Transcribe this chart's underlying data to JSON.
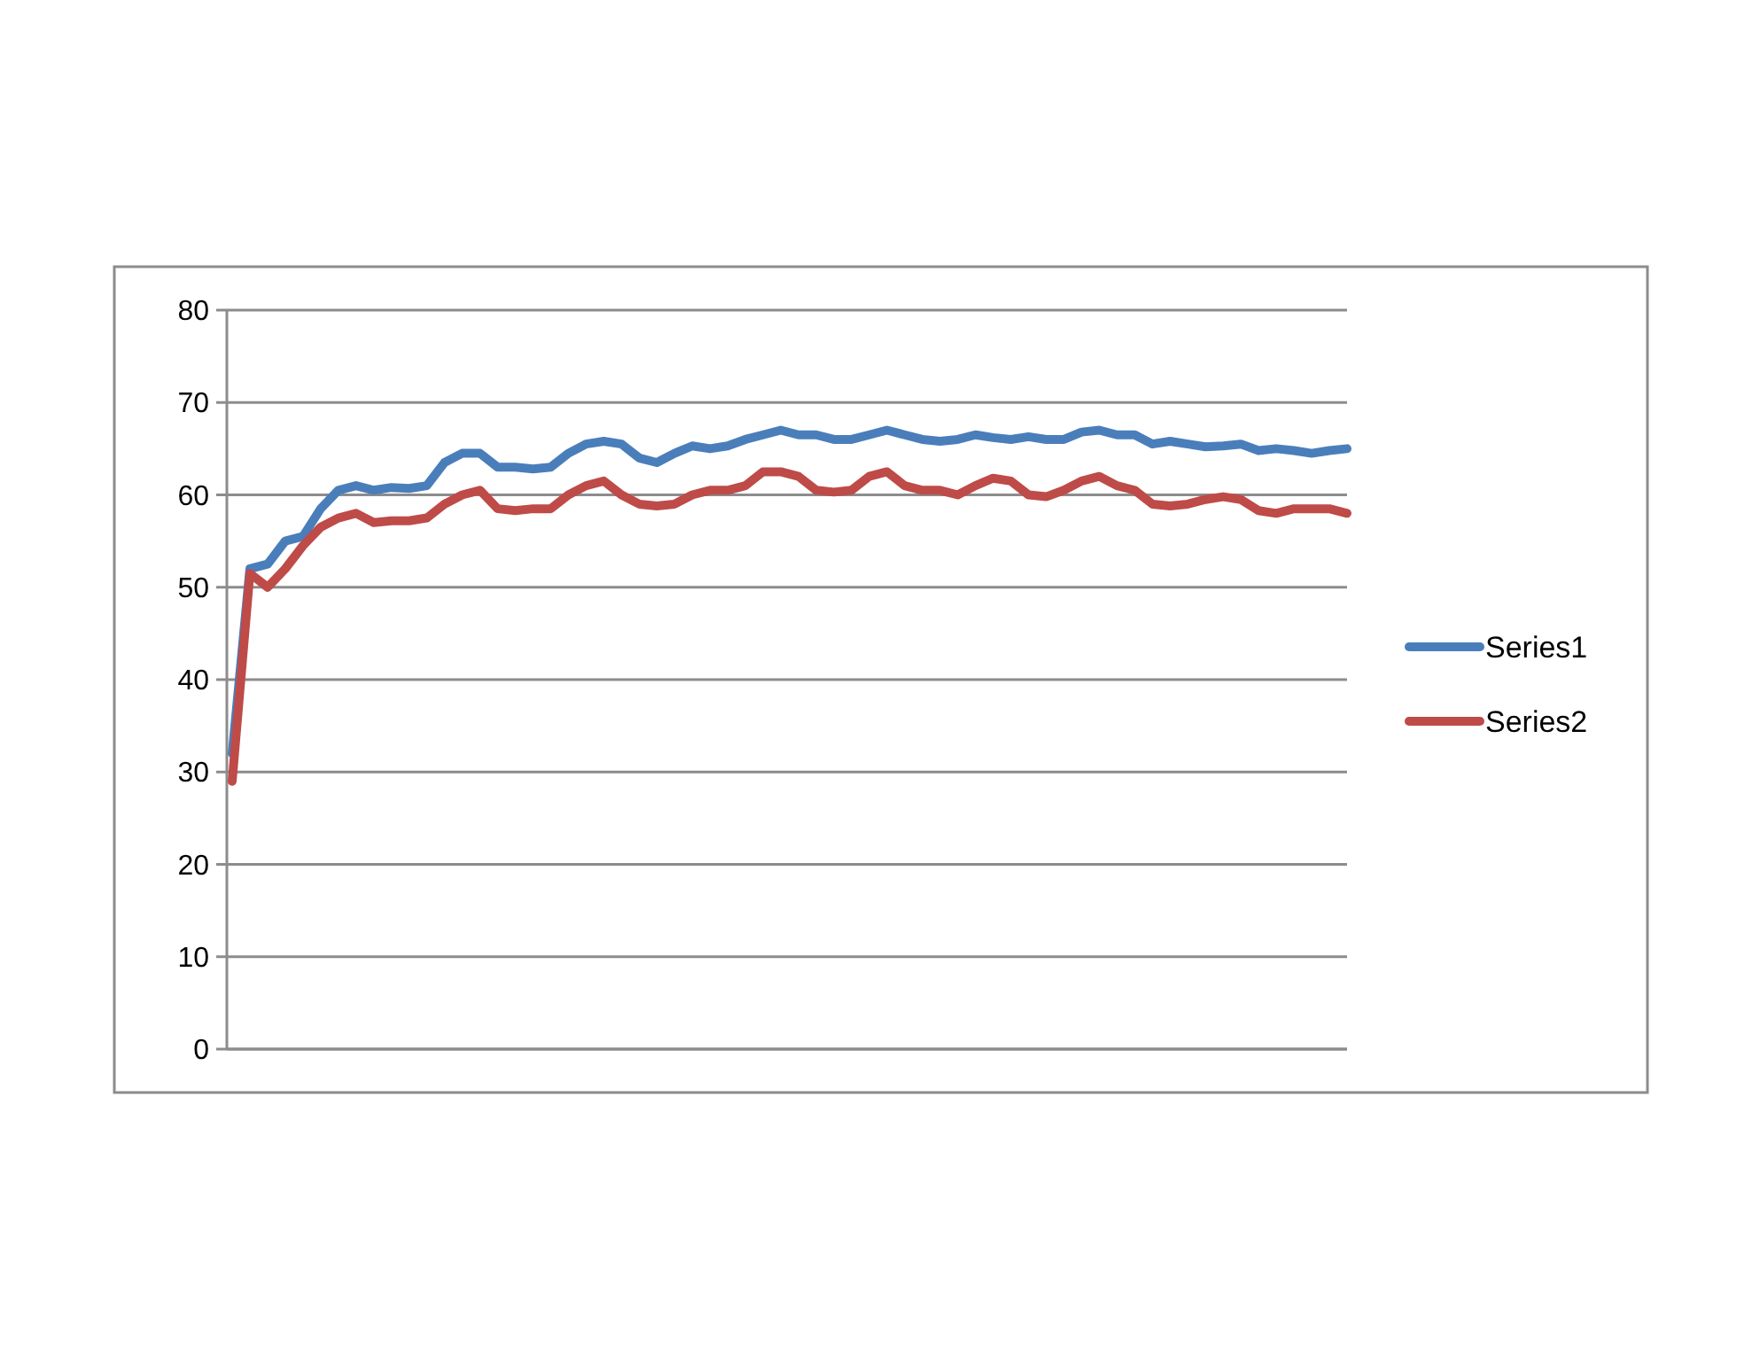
{
  "chart_data": {
    "type": "line",
    "categories": [
      null,
      null,
      null,
      null,
      null,
      null,
      null,
      null,
      null,
      null,
      null,
      null,
      null,
      null,
      null,
      null,
      null,
      null,
      null,
      null,
      null,
      null,
      null,
      null,
      null,
      null,
      null,
      null,
      null,
      null,
      null,
      null,
      null,
      null,
      null,
      null,
      null,
      null,
      null,
      null,
      null,
      null,
      null,
      null,
      null,
      null,
      null,
      null,
      null,
      null,
      null,
      null,
      null,
      null,
      null,
      null,
      null,
      null,
      null,
      null,
      null,
      null,
      null,
      null
    ],
    "series": [
      {
        "name": "Series1",
        "color": "#4a7ebb",
        "values": [
          32,
          52,
          52.5,
          55,
          55.5,
          58.5,
          60.5,
          61,
          60.5,
          60.8,
          60.7,
          61,
          63.5,
          64.5,
          64.5,
          63,
          63,
          62.8,
          63,
          64.5,
          65.5,
          65.8,
          65.5,
          64,
          63.5,
          64.5,
          65.3,
          65,
          65.3,
          66,
          66.5,
          67,
          66.5,
          66.5,
          66,
          66,
          66.5,
          67,
          66.5,
          66,
          65.8,
          66,
          66.5,
          66.2,
          66,
          66.3,
          66,
          66,
          66.8,
          67,
          66.5,
          66.5,
          65.5,
          65.8,
          65.5,
          65.2,
          65.3,
          65.5,
          64.8,
          65,
          64.8,
          64.5,
          64.8,
          65
        ]
      },
      {
        "name": "Series2",
        "color": "#be4b48",
        "values": [
          29,
          51.5,
          50,
          52,
          54.5,
          56.5,
          57.5,
          58,
          57,
          57.2,
          57.2,
          57.5,
          59,
          60,
          60.5,
          58.5,
          58.3,
          58.5,
          58.5,
          60,
          61,
          61.5,
          60,
          59,
          58.8,
          59,
          60,
          60.5,
          60.5,
          61,
          62.5,
          62.5,
          62,
          60.5,
          60.3,
          60.5,
          62,
          62.5,
          61,
          60.5,
          60.5,
          60,
          61,
          61.8,
          61.5,
          60,
          59.8,
          60.5,
          61.5,
          62,
          61,
          60.5,
          59,
          58.8,
          59,
          59.5,
          59.8,
          59.5,
          58.3,
          58,
          58.5,
          58.5,
          58.5,
          58
        ]
      }
    ],
    "ylim": [
      0,
      80
    ],
    "yticks": [
      0,
      10,
      20,
      30,
      40,
      50,
      60,
      70,
      80
    ],
    "grid": "y",
    "legend": "right",
    "tick_labels": "y",
    "marker": "none",
    "line_style": "solid"
  }
}
